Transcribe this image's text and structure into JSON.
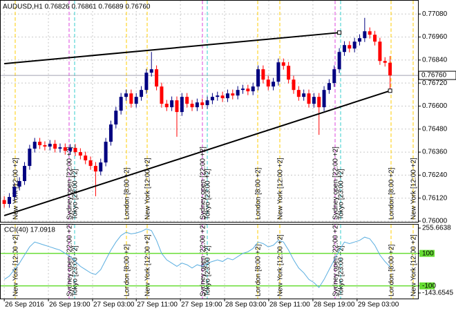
{
  "chart_data": {
    "type": "candlestick",
    "title": "AUDUSD,H1  0.76826 0.76861 0.76689 0.76760",
    "last_price_label": "0.76760",
    "open": [
      0.7611,
      0.7609,
      0.76126,
      0.7618,
      0.76209,
      0.76288,
      0.76378,
      0.76414,
      0.76396,
      0.76389,
      0.76403,
      0.76378,
      0.76385,
      0.76367,
      0.76382,
      0.7636,
      0.76342,
      0.76317,
      0.76288,
      0.76259,
      0.76306,
      0.76414,
      0.76504,
      0.76576,
      0.76648,
      0.76666,
      0.76612,
      0.76648,
      0.76684,
      0.76774,
      0.76792,
      0.76702,
      0.76612,
      0.76594,
      0.7663,
      0.76569,
      0.76648,
      0.76612,
      0.76594,
      0.76619,
      0.76605,
      0.7663,
      0.76648,
      0.76655,
      0.76641,
      0.76666,
      0.76655,
      0.76684,
      0.76691,
      0.76677,
      0.76702,
      0.76792,
      0.76738,
      0.76702,
      0.76727,
      0.76828,
      0.7681,
      0.76738,
      0.76684,
      0.76648,
      0.76666,
      0.76612,
      0.76648,
      0.76594,
      0.76684,
      0.7672,
      0.76792,
      0.76882,
      0.76918,
      0.769,
      0.76936,
      0.76954,
      0.7699,
      0.76972,
      0.76936,
      0.76835,
      0.76826
    ],
    "high": [
      0.7613,
      0.76146,
      0.762,
      0.76229,
      0.76308,
      0.76398,
      0.76434,
      0.76434,
      0.76416,
      0.76423,
      0.76423,
      0.76405,
      0.76405,
      0.76402,
      0.76402,
      0.7638,
      0.76362,
      0.76337,
      0.76308,
      0.76326,
      0.76434,
      0.76524,
      0.76596,
      0.76668,
      0.76686,
      0.76686,
      0.76668,
      0.76704,
      0.76794,
      0.76882,
      0.76812,
      0.76722,
      0.76632,
      0.7665,
      0.7665,
      0.76668,
      0.76668,
      0.76632,
      0.76639,
      0.76639,
      0.7665,
      0.76668,
      0.76675,
      0.76675,
      0.76686,
      0.76686,
      0.76704,
      0.76711,
      0.76711,
      0.76722,
      0.76812,
      0.76812,
      0.76758,
      0.76747,
      0.76848,
      0.76848,
      0.7683,
      0.76758,
      0.76704,
      0.76686,
      0.76686,
      0.76668,
      0.76668,
      0.76704,
      0.7674,
      0.76812,
      0.76902,
      0.76938,
      0.76938,
      0.76956,
      0.76974,
      0.7706,
      0.7701,
      0.76992,
      0.76956,
      0.76855,
      0.76861
    ],
    "low": [
      0.7607,
      0.7607,
      0.76106,
      0.7616,
      0.76189,
      0.76268,
      0.76358,
      0.76376,
      0.76369,
      0.76369,
      0.76358,
      0.76358,
      0.76347,
      0.76347,
      0.7634,
      0.76322,
      0.76297,
      0.76268,
      0.7613,
      0.76239,
      0.76286,
      0.76394,
      0.76484,
      0.76556,
      0.76628,
      0.76592,
      0.76592,
      0.76628,
      0.76664,
      0.76754,
      0.76682,
      0.76592,
      0.76574,
      0.76574,
      0.7644,
      0.76549,
      0.76592,
      0.76574,
      0.76574,
      0.76585,
      0.76585,
      0.7661,
      0.76628,
      0.76621,
      0.76621,
      0.76635,
      0.76635,
      0.76664,
      0.76657,
      0.76657,
      0.76682,
      0.76718,
      0.76682,
      0.76682,
      0.76707,
      0.7679,
      0.76718,
      0.76664,
      0.76628,
      0.76628,
      0.76592,
      0.76592,
      0.7645,
      0.76574,
      0.76664,
      0.767,
      0.76772,
      0.76862,
      0.7688,
      0.7688,
      0.76916,
      0.76934,
      0.76952,
      0.76916,
      0.76815,
      0.76806,
      0.76689
    ],
    "close": [
      0.7609,
      0.76126,
      0.7618,
      0.76209,
      0.76288,
      0.76378,
      0.76414,
      0.76396,
      0.76389,
      0.76403,
      0.76378,
      0.76385,
      0.76367,
      0.76382,
      0.7636,
      0.76342,
      0.76317,
      0.76288,
      0.76259,
      0.76306,
      0.76414,
      0.76504,
      0.76576,
      0.76648,
      0.76666,
      0.76612,
      0.76648,
      0.76684,
      0.76774,
      0.76792,
      0.76702,
      0.76612,
      0.76594,
      0.7663,
      0.76569,
      0.76648,
      0.76612,
      0.76594,
      0.76619,
      0.76605,
      0.7663,
      0.76648,
      0.76655,
      0.76641,
      0.76666,
      0.76655,
      0.76684,
      0.76691,
      0.76677,
      0.76702,
      0.76792,
      0.76738,
      0.76702,
      0.76727,
      0.76828,
      0.7681,
      0.76738,
      0.76684,
      0.76648,
      0.76666,
      0.76612,
      0.76648,
      0.76594,
      0.76684,
      0.7672,
      0.76792,
      0.76882,
      0.76918,
      0.769,
      0.76936,
      0.76954,
      0.7699,
      0.76972,
      0.76936,
      0.76835,
      0.76826,
      0.7676
    ],
    "bull_color": "#000080",
    "bear_color": "#ff0000",
    "xlim": [
      -0.7,
      81.5
    ],
    "xticks": [
      {
        "value": 0,
        "label": "26 Sep 2016"
      },
      {
        "value": 8.7,
        "label": "26 Sep 19:00"
      },
      {
        "value": 17.4,
        "label": "27 Sep 03:00"
      },
      {
        "value": 26,
        "label": "27 Sep 11:00"
      },
      {
        "value": 34.7,
        "label": "27 Sep 19:00"
      },
      {
        "value": 43.4,
        "label": "28 Sep 03:00"
      },
      {
        "value": 52.1,
        "label": "28 Sep 11:00"
      },
      {
        "value": 60.8,
        "label": "28 Sep 19:00"
      },
      {
        "value": 69.5,
        "label": "29 Sep 03:00"
      }
    ],
    "ylim": [
      0.76,
      0.77135
    ],
    "yticks": [
      {
        "value": 0.7708,
        "label": "0.77080"
      },
      {
        "value": 0.7696,
        "label": "0.76960"
      },
      {
        "value": 0.7684,
        "label": "0.76840"
      },
      {
        "value": 0.7672,
        "label": "0.76720"
      },
      {
        "value": 0.766,
        "label": "0.76600"
      },
      {
        "value": 0.7648,
        "label": "0.76480"
      },
      {
        "value": 0.7636,
        "label": "0.76360"
      },
      {
        "value": 0.7624,
        "label": "0.76240"
      },
      {
        "value": 0.7612,
        "label": "0.76120"
      },
      {
        "value": 0.76,
        "label": "0.76000"
      }
    ],
    "grid": true,
    "trendlines": [
      {
        "x": [
          0,
          66
        ],
        "y": [
          0.76821,
          0.76983
        ]
      },
      {
        "x": [
          0,
          76
        ],
        "y": [
          0.76029,
          0.7668
        ]
      }
    ],
    "sessions": [
      "New York [12:00 +2]",
      "Sydney open [22:00 +2]",
      "Tokyo [23:00 +2]",
      "London [8:00 +2]",
      "New York [12:00 +2]",
      "Sydney open [22:00 +2]",
      "Tokyo [23:00 +2]",
      "London [8:00 +2]",
      "New York [12:00 +2]",
      "Sydney open [22:00 +2]",
      "Tokyo [23:00 +2]",
      "London [8:00 +2]",
      "New York [12:00 +2]"
    ],
    "cci_label": "CCI(40) 17.0918",
    "cci": [
      -60,
      -40,
      0,
      40,
      90,
      140,
      170,
      160,
      150,
      140,
      130,
      120,
      100,
      80,
      50,
      20,
      0,
      -20,
      -30,
      0,
      60,
      120,
      170,
      210,
      230,
      220,
      225,
      235,
      250,
      240,
      180,
      100,
      60,
      40,
      20,
      40,
      30,
      10,
      30,
      20,
      40,
      50,
      60,
      50,
      70,
      60,
      80,
      100,
      110,
      130,
      170,
      160,
      140,
      150,
      180,
      170,
      120,
      60,
      10,
      -20,
      -60,
      -80,
      -110,
      -60,
      0,
      60,
      120,
      170,
      160,
      170,
      180,
      200,
      190,
      150,
      90,
      50,
      17.0918
    ],
    "cci_color": "#5aaee0",
    "cci_ylim": [
      -178,
      277
    ],
    "cci_yticks": [
      255.6638,
      100,
      -100,
      -143.6545
    ],
    "cci_levels": [
      100,
      -100
    ],
    "level_color": "#66dd33"
  }
}
